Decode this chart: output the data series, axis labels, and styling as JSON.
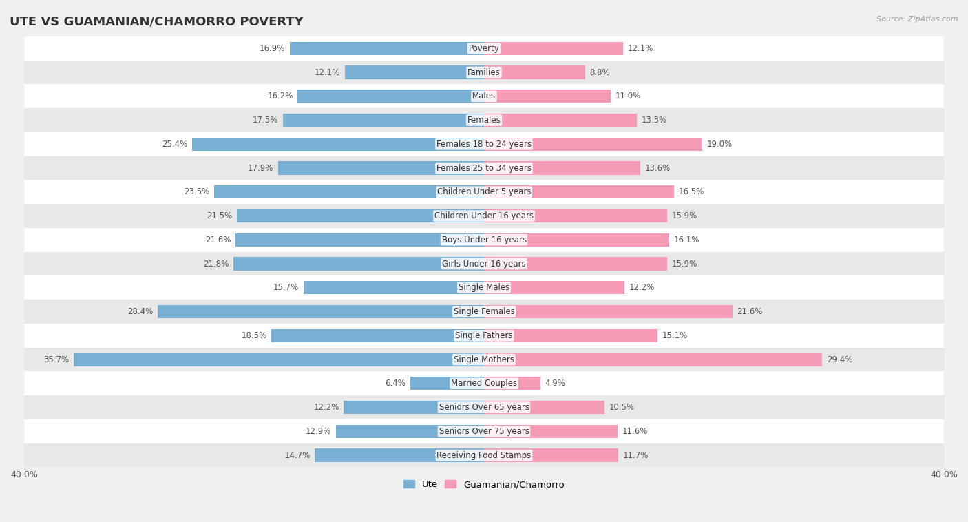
{
  "title": "UTE VS GUAMANIAN/CHAMORRO POVERTY",
  "source": "Source: ZipAtlas.com",
  "categories": [
    "Poverty",
    "Families",
    "Males",
    "Females",
    "Females 18 to 24 years",
    "Females 25 to 34 years",
    "Children Under 5 years",
    "Children Under 16 years",
    "Boys Under 16 years",
    "Girls Under 16 years",
    "Single Males",
    "Single Females",
    "Single Fathers",
    "Single Mothers",
    "Married Couples",
    "Seniors Over 65 years",
    "Seniors Over 75 years",
    "Receiving Food Stamps"
  ],
  "ute_values": [
    16.9,
    12.1,
    16.2,
    17.5,
    25.4,
    17.9,
    23.5,
    21.5,
    21.6,
    21.8,
    15.7,
    28.4,
    18.5,
    35.7,
    6.4,
    12.2,
    12.9,
    14.7
  ],
  "guam_values": [
    12.1,
    8.8,
    11.0,
    13.3,
    19.0,
    13.6,
    16.5,
    15.9,
    16.1,
    15.9,
    12.2,
    21.6,
    15.1,
    29.4,
    4.9,
    10.5,
    11.6,
    11.7
  ],
  "ute_color": "#7aafd4",
  "guam_color": "#f59bb5",
  "background_color": "#f0f0f0",
  "row_color_light": "#ffffff",
  "row_color_dark": "#e8e8e8",
  "xlim": 40.0,
  "legend_labels": [
    "Ute",
    "Guamanian/Chamorro"
  ],
  "bar_height": 0.55,
  "label_fontsize": 8.5,
  "cat_fontsize": 8.5,
  "title_fontsize": 13
}
